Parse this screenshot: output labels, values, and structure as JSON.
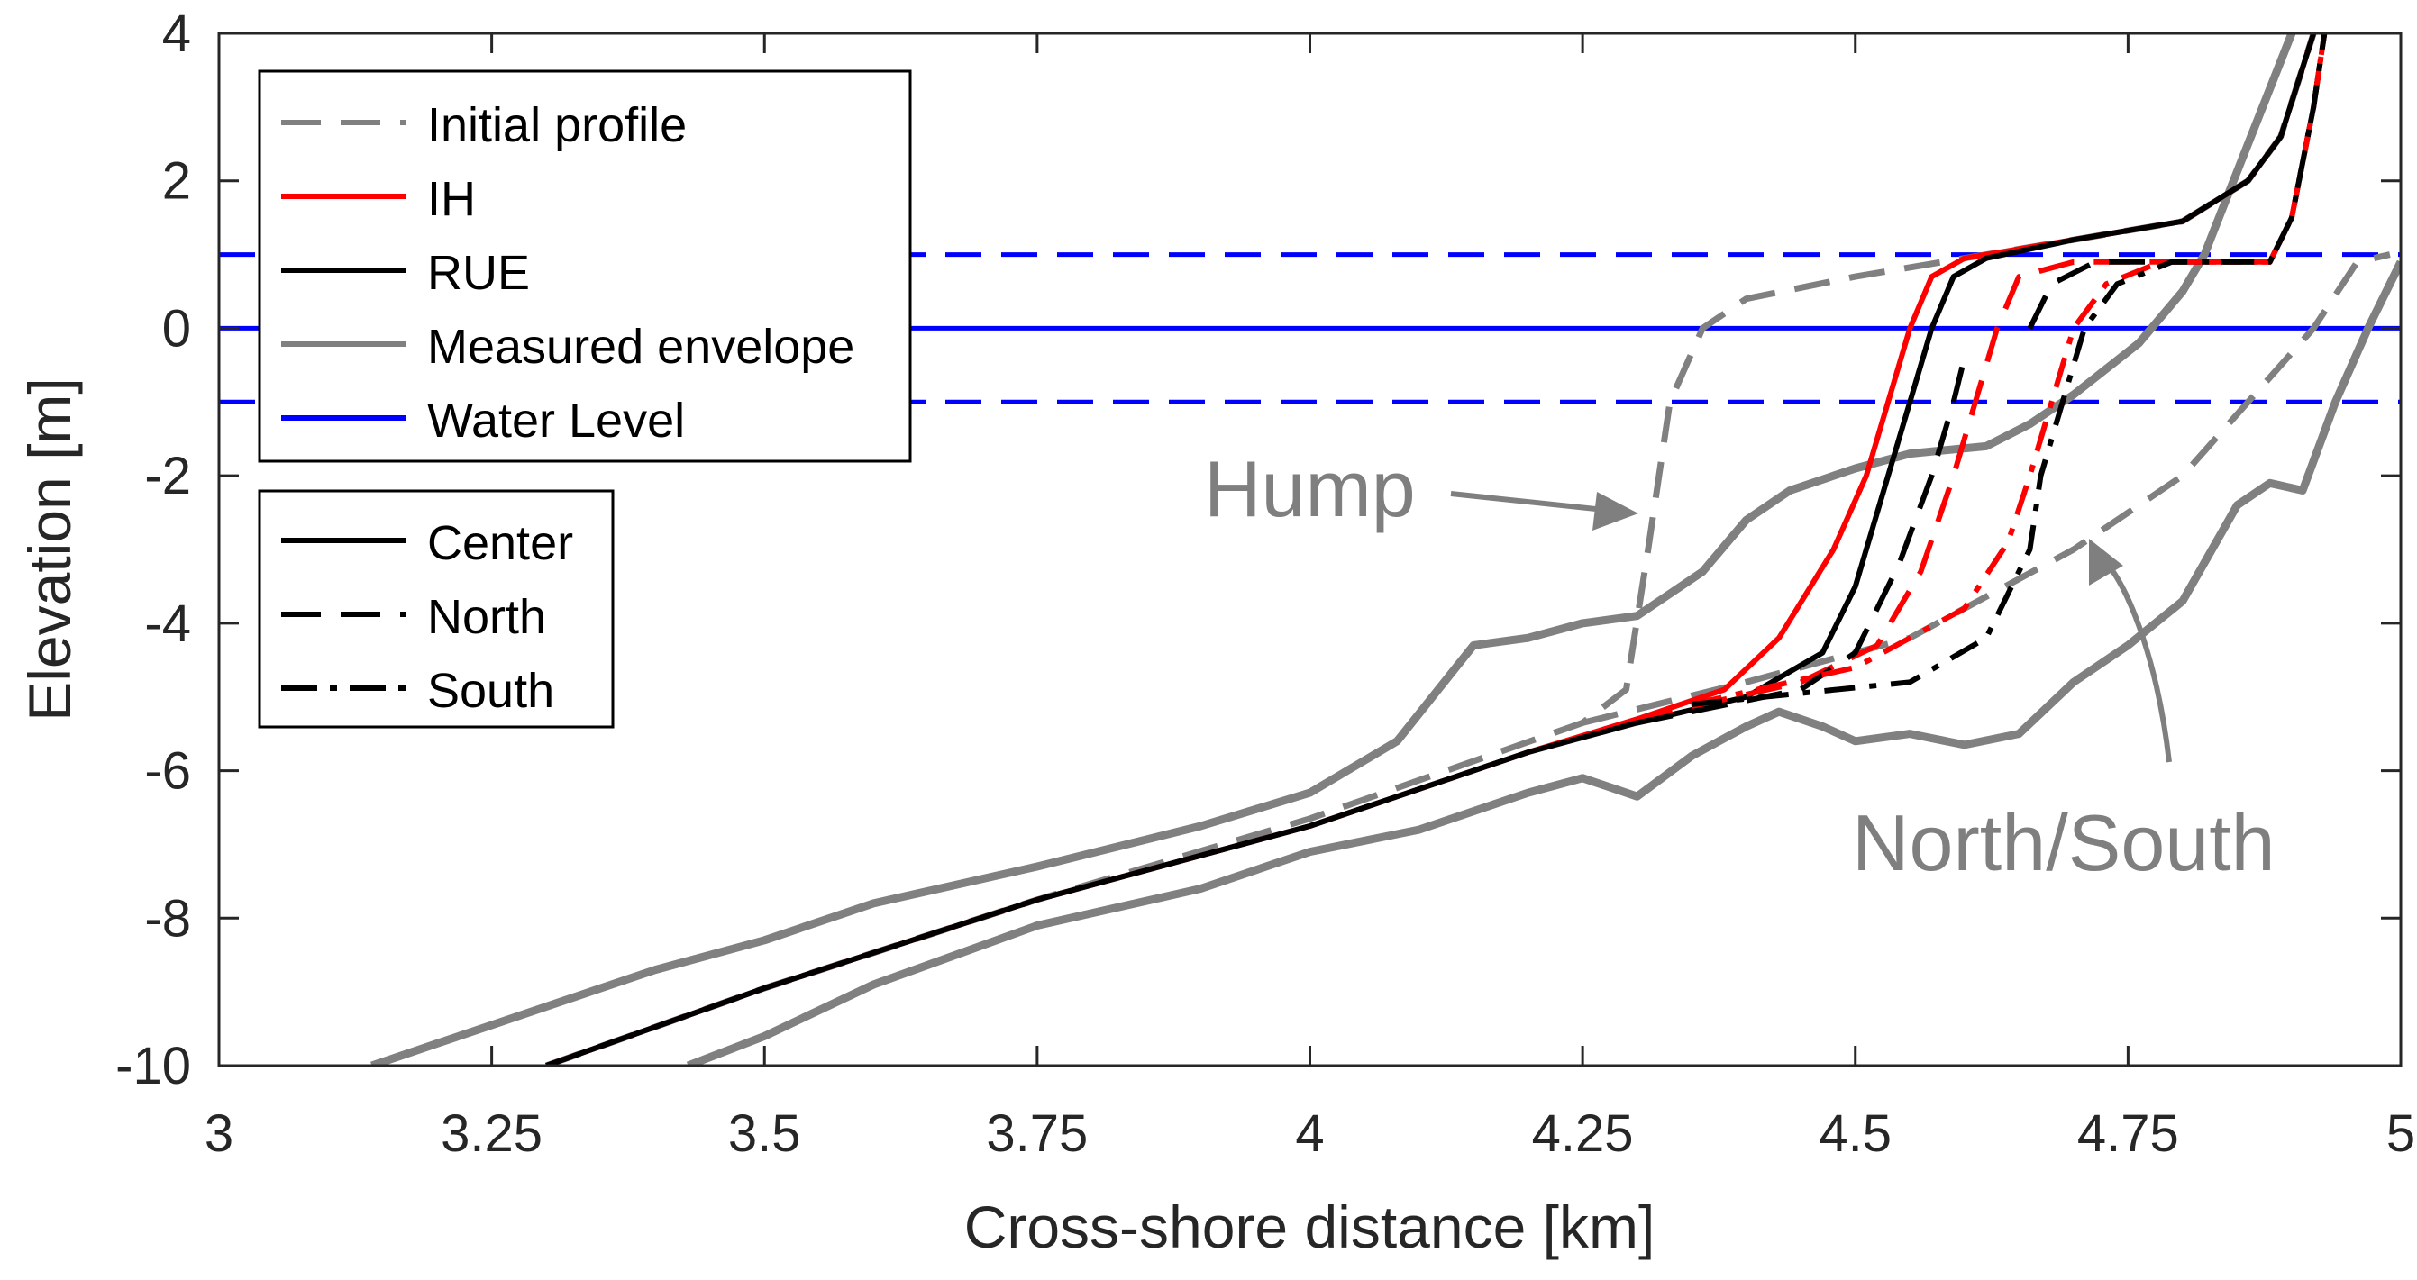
{
  "chart_data": {
    "type": "line",
    "xlabel": "Cross-shore distance [km]",
    "ylabel": "Elevation [m]",
    "xlim": [
      3,
      5
    ],
    "ylim": [
      -10,
      4
    ],
    "xticks": [
      3,
      3.25,
      3.5,
      3.75,
      4,
      4.25,
      4.5,
      4.75,
      5
    ],
    "xtick_labels": [
      "3",
      "3.25",
      "3.5",
      "3.75",
      "4",
      "4.25",
      "4.5",
      "4.75",
      "5"
    ],
    "yticks": [
      -10,
      -8,
      -6,
      -4,
      -2,
      0,
      2,
      4
    ],
    "ytick_labels": [
      "-10",
      "-8",
      "-6",
      "-4",
      "-2",
      "0",
      "2",
      "4"
    ],
    "grid": false,
    "colors": {
      "initial": "#808080",
      "ih": "#ff0000",
      "rue": "#000000",
      "measured": "#808080",
      "water": "#0000ff",
      "annotation": "#7f7f7f"
    },
    "legend_main": {
      "placement": "top-left",
      "entries": [
        {
          "label": "Initial profile",
          "color": "#808080",
          "dash": "dashed"
        },
        {
          "label": "IH",
          "color": "#ff0000",
          "dash": "solid"
        },
        {
          "label": "RUE",
          "color": "#000000",
          "dash": "solid"
        },
        {
          "label": "Measured envelope",
          "color": "#808080",
          "dash": "solid"
        },
        {
          "label": "Water Level",
          "color": "#0000ff",
          "dash": "solid"
        }
      ]
    },
    "legend_transect": {
      "placement": "left",
      "entries": [
        {
          "label": "Center",
          "color": "#000000",
          "dash": "solid"
        },
        {
          "label": "North",
          "color": "#000000",
          "dash": "dashed"
        },
        {
          "label": "South",
          "color": "#000000",
          "dash": "dashdot"
        }
      ]
    },
    "annotations": [
      {
        "text": "Hump",
        "points_to": [
          4.31,
          -2.5
        ]
      },
      {
        "text": "North/South",
        "points_to": [
          4.71,
          -2.9
        ]
      }
    ],
    "series": [
      {
        "name": "Water Level mean",
        "color": "#0000ff",
        "dash": "solid",
        "width": 5,
        "points": [
          [
            3,
            0
          ],
          [
            5,
            0
          ]
        ]
      },
      {
        "name": "Water Level high",
        "color": "#0000ff",
        "dash": "dashed",
        "width": 5,
        "points": [
          [
            3,
            1
          ],
          [
            5,
            1
          ]
        ]
      },
      {
        "name": "Water Level low",
        "color": "#0000ff",
        "dash": "dashed",
        "width": 5,
        "points": [
          [
            3,
            -1
          ],
          [
            5,
            -1
          ]
        ]
      },
      {
        "name": "Measured envelope upper",
        "color": "#808080",
        "dash": "solid",
        "width": 9,
        "points": [
          [
            3.14,
            -10
          ],
          [
            3.2,
            -9.7
          ],
          [
            3.25,
            -9.45
          ],
          [
            3.3,
            -9.2
          ],
          [
            3.35,
            -8.95
          ],
          [
            3.4,
            -8.7
          ],
          [
            3.5,
            -8.3
          ],
          [
            3.6,
            -7.8
          ],
          [
            3.75,
            -7.3
          ],
          [
            3.9,
            -6.75
          ],
          [
            4.0,
            -6.3
          ],
          [
            4.08,
            -5.6
          ],
          [
            4.15,
            -4.3
          ],
          [
            4.2,
            -4.2
          ],
          [
            4.25,
            -4.0
          ],
          [
            4.3,
            -3.9
          ],
          [
            4.36,
            -3.3
          ],
          [
            4.4,
            -2.6
          ],
          [
            4.44,
            -2.2
          ],
          [
            4.5,
            -1.9
          ],
          [
            4.55,
            -1.7
          ],
          [
            4.62,
            -1.6
          ],
          [
            4.66,
            -1.3
          ],
          [
            4.7,
            -0.9
          ],
          [
            4.76,
            -0.2
          ],
          [
            4.8,
            0.5
          ],
          [
            4.82,
            1.0
          ],
          [
            4.86,
            2.5
          ],
          [
            4.9,
            4.0
          ]
        ]
      },
      {
        "name": "Measured envelope lower",
        "color": "#808080",
        "dash": "solid",
        "width": 9,
        "points": [
          [
            3.43,
            -10
          ],
          [
            3.5,
            -9.6
          ],
          [
            3.6,
            -8.9
          ],
          [
            3.75,
            -8.1
          ],
          [
            3.9,
            -7.6
          ],
          [
            4.0,
            -7.1
          ],
          [
            4.1,
            -6.8
          ],
          [
            4.2,
            -6.3
          ],
          [
            4.25,
            -6.1
          ],
          [
            4.3,
            -6.35
          ],
          [
            4.35,
            -5.8
          ],
          [
            4.4,
            -5.4
          ],
          [
            4.43,
            -5.2
          ],
          [
            4.47,
            -5.4
          ],
          [
            4.5,
            -5.6
          ],
          [
            4.55,
            -5.5
          ],
          [
            4.6,
            -5.65
          ],
          [
            4.65,
            -5.5
          ],
          [
            4.7,
            -4.8
          ],
          [
            4.75,
            -4.3
          ],
          [
            4.8,
            -3.7
          ],
          [
            4.85,
            -2.4
          ],
          [
            4.88,
            -2.1
          ],
          [
            4.91,
            -2.2
          ],
          [
            4.94,
            -1.0
          ],
          [
            4.97,
            0.0
          ],
          [
            5.0,
            0.9
          ]
        ]
      },
      {
        "name": "Initial profile",
        "color": "#808080",
        "dash": "dashed",
        "width": 7,
        "points": [
          [
            3.3,
            -10
          ],
          [
            3.5,
            -8.95
          ],
          [
            3.75,
            -7.75
          ],
          [
            4.0,
            -6.65
          ],
          [
            4.25,
            -5.35
          ],
          [
            4.29,
            -4.9
          ],
          [
            4.31,
            -3.0
          ],
          [
            4.33,
            -1.0
          ],
          [
            4.36,
            0.0
          ],
          [
            4.4,
            0.4
          ],
          [
            4.5,
            0.7
          ],
          [
            4.6,
            0.95
          ],
          [
            4.7,
            1.2
          ],
          [
            4.8,
            1.45
          ],
          [
            4.86,
            2.0
          ],
          [
            4.89,
            2.6
          ],
          [
            4.92,
            4.0
          ]
        ]
      },
      {
        "name": "Initial profile (North/South)",
        "color": "#808080",
        "dash": "dashed",
        "width": 7,
        "points": [
          [
            4.25,
            -5.35
          ],
          [
            4.4,
            -4.8
          ],
          [
            4.55,
            -4.2
          ],
          [
            4.7,
            -3.0
          ],
          [
            4.8,
            -2.0
          ],
          [
            4.86,
            -1.0
          ],
          [
            4.92,
            0.0
          ],
          [
            4.96,
            0.9
          ],
          [
            4.99,
            1.0
          ]
        ]
      },
      {
        "name": "IH Center",
        "color": "#ff0000",
        "dash": "solid",
        "width": 6,
        "points": [
          [
            3.3,
            -10
          ],
          [
            3.5,
            -8.95
          ],
          [
            3.75,
            -7.75
          ],
          [
            4.0,
            -6.75
          ],
          [
            4.2,
            -5.75
          ],
          [
            4.3,
            -5.3
          ],
          [
            4.38,
            -4.9
          ],
          [
            4.43,
            -4.2
          ],
          [
            4.48,
            -3.0
          ],
          [
            4.51,
            -2.0
          ],
          [
            4.53,
            -1.0
          ],
          [
            4.55,
            0.0
          ],
          [
            4.57,
            0.7
          ],
          [
            4.6,
            0.95
          ],
          [
            4.7,
            1.2
          ],
          [
            4.8,
            1.45
          ],
          [
            4.86,
            2.0
          ],
          [
            4.89,
            2.6
          ],
          [
            4.92,
            4.0
          ]
        ]
      },
      {
        "name": "RUE Center",
        "color": "#000000",
        "dash": "solid",
        "width": 6,
        "points": [
          [
            3.3,
            -10
          ],
          [
            3.5,
            -8.95
          ],
          [
            3.75,
            -7.75
          ],
          [
            4.0,
            -6.75
          ],
          [
            4.2,
            -5.75
          ],
          [
            4.3,
            -5.35
          ],
          [
            4.4,
            -5.0
          ],
          [
            4.47,
            -4.4
          ],
          [
            4.5,
            -3.5
          ],
          [
            4.53,
            -2.0
          ],
          [
            4.55,
            -1.0
          ],
          [
            4.57,
            0.0
          ],
          [
            4.59,
            0.7
          ],
          [
            4.62,
            0.95
          ],
          [
            4.7,
            1.2
          ],
          [
            4.8,
            1.45
          ],
          [
            4.86,
            2.0
          ],
          [
            4.89,
            2.6
          ],
          [
            4.92,
            4.0
          ]
        ]
      },
      {
        "name": "IH North",
        "color": "#ff0000",
        "dash": "dashed",
        "width": 6,
        "points": [
          [
            4.3,
            -5.3
          ],
          [
            4.45,
            -4.8
          ],
          [
            4.52,
            -4.3
          ],
          [
            4.56,
            -3.3
          ],
          [
            4.59,
            -2.0
          ],
          [
            4.61,
            -1.0
          ],
          [
            4.63,
            0.0
          ],
          [
            4.65,
            0.7
          ],
          [
            4.7,
            0.9
          ],
          [
            4.8,
            0.9
          ],
          [
            4.88,
            0.9
          ],
          [
            4.9,
            1.5
          ],
          [
            4.92,
            3.0
          ],
          [
            4.93,
            4.0
          ]
        ]
      },
      {
        "name": "RUE North",
        "color": "#000000",
        "dash": "dashed",
        "width": 6,
        "points": [
          [
            4.3,
            -5.35
          ],
          [
            4.45,
            -4.9
          ],
          [
            4.5,
            -4.4
          ],
          [
            4.54,
            -3.2
          ],
          [
            4.57,
            -2.0
          ],
          [
            4.59,
            -1.0
          ],
          [
            4.6,
            -0.4
          ]
        ]
      },
      {
        "name": "RUE North upper",
        "color": "#000000",
        "dash": "dashed",
        "width": 6,
        "points": [
          [
            4.66,
            0.0
          ],
          [
            4.68,
            0.6
          ],
          [
            4.72,
            0.9
          ],
          [
            4.8,
            0.9
          ],
          [
            4.88,
            0.9
          ],
          [
            4.9,
            1.5
          ],
          [
            4.92,
            3.0
          ],
          [
            4.93,
            4.0
          ]
        ]
      },
      {
        "name": "IH South",
        "color": "#ff0000",
        "dash": "dashdot",
        "width": 6,
        "points": [
          [
            4.35,
            -5.1
          ],
          [
            4.5,
            -4.6
          ],
          [
            4.6,
            -3.8
          ],
          [
            4.64,
            -2.9
          ],
          [
            4.66,
            -2.0
          ],
          [
            4.68,
            -1.0
          ],
          [
            4.7,
            0.0
          ],
          [
            4.73,
            0.6
          ],
          [
            4.78,
            0.9
          ],
          [
            4.88,
            0.9
          ],
          [
            4.9,
            1.5
          ],
          [
            4.92,
            3.0
          ],
          [
            4.93,
            4.0
          ]
        ]
      },
      {
        "name": "RUE South",
        "color": "#000000",
        "dash": "dashdot",
        "width": 6,
        "points": [
          [
            4.35,
            -5.1
          ],
          [
            4.55,
            -4.8
          ],
          [
            4.62,
            -4.2
          ],
          [
            4.66,
            -3.0
          ],
          [
            4.67,
            -2.0
          ],
          [
            4.69,
            -1.0
          ],
          [
            4.71,
            0.0
          ],
          [
            4.74,
            0.6
          ],
          [
            4.79,
            0.9
          ],
          [
            4.88,
            0.9
          ],
          [
            4.9,
            1.5
          ],
          [
            4.92,
            3.0
          ],
          [
            4.93,
            4.0
          ]
        ]
      }
    ]
  }
}
